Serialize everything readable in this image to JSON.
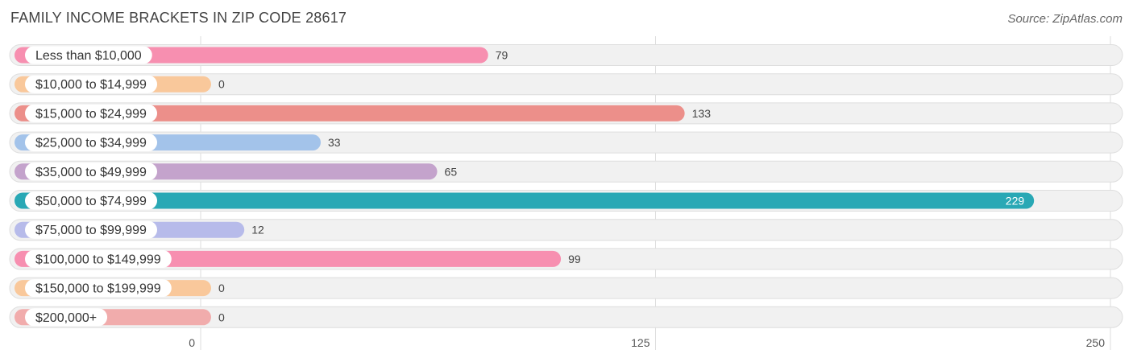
{
  "header": {
    "title": "FAMILY INCOME BRACKETS IN ZIP CODE 28617",
    "source": "Source: ZipAtlas.com"
  },
  "chart_data": {
    "type": "bar",
    "orientation": "horizontal",
    "title": "FAMILY INCOME BRACKETS IN ZIP CODE 28617",
    "categories": [
      "Less than $10,000",
      "$10,000 to $14,999",
      "$15,000 to $24,999",
      "$25,000 to $34,999",
      "$35,000 to $49,999",
      "$50,000 to $74,999",
      "$75,000 to $99,999",
      "$100,000 to $149,999",
      "$150,000 to $199,999",
      "$200,000+"
    ],
    "values": [
      79,
      0,
      133,
      33,
      65,
      229,
      12,
      99,
      0,
      0
    ],
    "colors": [
      "#f78fb0",
      "#f9c89b",
      "#ec8f8a",
      "#a3c3ea",
      "#c4a3cc",
      "#29a8b5",
      "#b7bbea",
      "#f78fb0",
      "#f9c89b",
      "#f1acac"
    ],
    "xlim": [
      0,
      250
    ],
    "xticks": [
      0,
      125,
      250
    ],
    "xlabel": "",
    "ylabel": "",
    "grid": true
  }
}
